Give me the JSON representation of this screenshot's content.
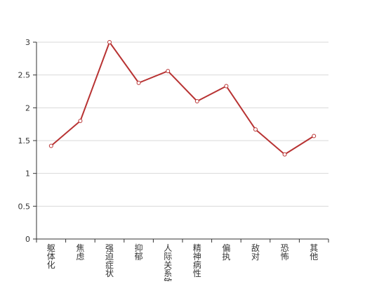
{
  "chart_data": {
    "type": "line",
    "categories": [
      "躯体化",
      "焦虑",
      "强迫症状",
      "抑郁",
      "人际关系敏感",
      "精神病性",
      "偏执",
      "敌对",
      "恐怖",
      "其他"
    ],
    "series": [
      {
        "values": [
          1.42,
          1.8,
          3.0,
          2.38,
          2.56,
          2.1,
          2.33,
          1.67,
          1.29,
          1.57
        ]
      }
    ],
    "y_ticks": [
      "0",
      "0.5",
      "1",
      "1.5",
      "2",
      "2.5",
      "3"
    ],
    "ylim": [
      0,
      3
    ],
    "grid": true,
    "colors": {
      "line": "#b83333",
      "grid": "#d9d9d9",
      "axis": "#333333",
      "text": "#333333"
    }
  }
}
